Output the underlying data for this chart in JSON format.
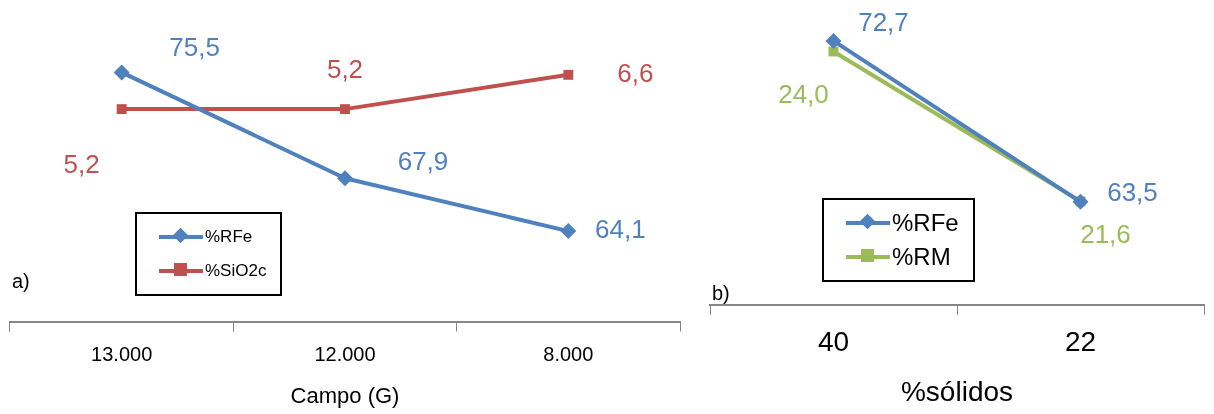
{
  "chart_data": [
    {
      "type": "line",
      "xlabel": "Campo (G)",
      "categories": [
        "13.000",
        "12.000",
        "8.000"
      ],
      "tick_labels": "x",
      "grid": false,
      "legend": "bottom left",
      "annotations": [
        "a)"
      ],
      "series": [
        {
          "name": "%RFe",
          "color": "#4f81bd",
          "marker": "diamond",
          "values": [
            75.5,
            67.9,
            64.1
          ],
          "value_labels": [
            "75,5",
            "67,9",
            "64,1"
          ]
        },
        {
          "name": "%SiO2c",
          "color": "#c0504d",
          "marker": "square",
          "axis": "y2",
          "values": [
            5.2,
            5.2,
            6.6
          ],
          "value_labels": [
            "5,2",
            "5,2",
            "6,6"
          ]
        }
      ]
    },
    {
      "type": "line",
      "xlabel": "%sólidos",
      "categories": [
        "40",
        "22"
      ],
      "tick_labels": "x",
      "grid": false,
      "legend": "bottom left",
      "annotations": [
        "b)"
      ],
      "series": [
        {
          "name": "%RFe",
          "color": "#4f81bd",
          "marker": "diamond",
          "values": [
            72.7,
            63.5
          ],
          "value_labels": [
            "72,7",
            "63,5"
          ]
        },
        {
          "name": "%RM",
          "color": "#9bbb59",
          "marker": "square",
          "axis": "y2",
          "values": [
            24.0,
            21.6
          ],
          "value_labels": [
            "24,0",
            "21,6"
          ]
        }
      ]
    }
  ]
}
